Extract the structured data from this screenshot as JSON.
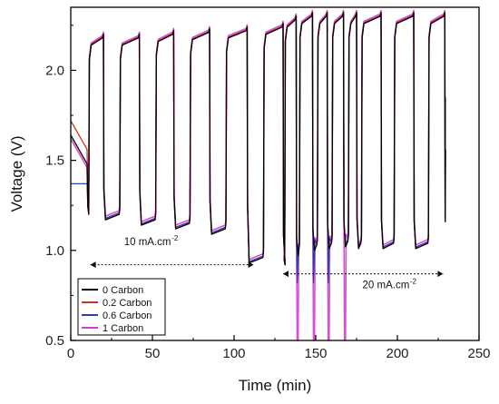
{
  "chart_data": {
    "type": "line",
    "title": "",
    "xlabel": "Time (min)",
    "ylabel": "Voltage (V)",
    "xlim": [
      0,
      250
    ],
    "ylim": [
      0.5,
      2.35
    ],
    "xticks": [
      0,
      50,
      100,
      150,
      200,
      250
    ],
    "yticks": [
      0.5,
      1.0,
      1.5,
      2.0
    ],
    "xtick_labels": [
      "0",
      "50",
      "100",
      "150",
      "200",
      "250"
    ],
    "ytick_labels": [
      "0.5",
      "1.0",
      "1.5",
      "2.0"
    ],
    "grid": false,
    "legend_position": "bottom-left",
    "series": [
      {
        "name": "0 Carbon",
        "color": "#000000"
      },
      {
        "name": "0.2 Carbon",
        "color": "#c0392b"
      },
      {
        "name": "0.6 Carbon",
        "color": "#2c3eab"
      },
      {
        "name": "1 Carbon",
        "color": "#d63bd6"
      }
    ],
    "cycles": [
      {
        "start": 11,
        "end": 20,
        "high": 2.18,
        "low": 1.21
      },
      {
        "start": 30,
        "end": 42,
        "high": 2.18,
        "low": 1.2
      },
      {
        "start": 52,
        "end": 63,
        "high": 2.2,
        "low": 1.17
      },
      {
        "start": 73,
        "end": 85,
        "high": 2.21,
        "low": 1.15
      },
      {
        "start": 95,
        "end": 108,
        "high": 2.22,
        "low": 1.12
      },
      {
        "start": 118,
        "end": 130,
        "high": 2.24,
        "low": 0.96
      },
      {
        "start": 131,
        "end": 138,
        "high": 2.28,
        "low": 0.95
      },
      {
        "start": 140,
        "end": 148,
        "high": 2.3,
        "low": 1.0
      },
      {
        "start": 151,
        "end": 157,
        "high": 2.3,
        "low": 1.03
      },
      {
        "start": 160,
        "end": 167,
        "high": 2.3,
        "low": 1.04
      },
      {
        "start": 170,
        "end": 175,
        "high": 2.3,
        "low": 1.05
      },
      {
        "start": 178,
        "end": 190,
        "high": 2.3,
        "low": 1.04
      },
      {
        "start": 198,
        "end": 210,
        "high": 2.3,
        "low": 1.04
      },
      {
        "start": 219,
        "end": 229,
        "high": 2.3,
        "low": 1.04
      }
    ],
    "annotations": [
      {
        "text": "10 mA.cm",
        "sup": "-2",
        "x": 47,
        "y": 1.03,
        "arrow_from": 12,
        "arrow_to": 112,
        "arrow_y": 0.92
      },
      {
        "text": "20 mA.cm",
        "sup": "-2",
        "x": 193,
        "y": 0.79,
        "arrow_from": 130,
        "arrow_to": 228,
        "arrow_y": 0.87
      }
    ]
  }
}
